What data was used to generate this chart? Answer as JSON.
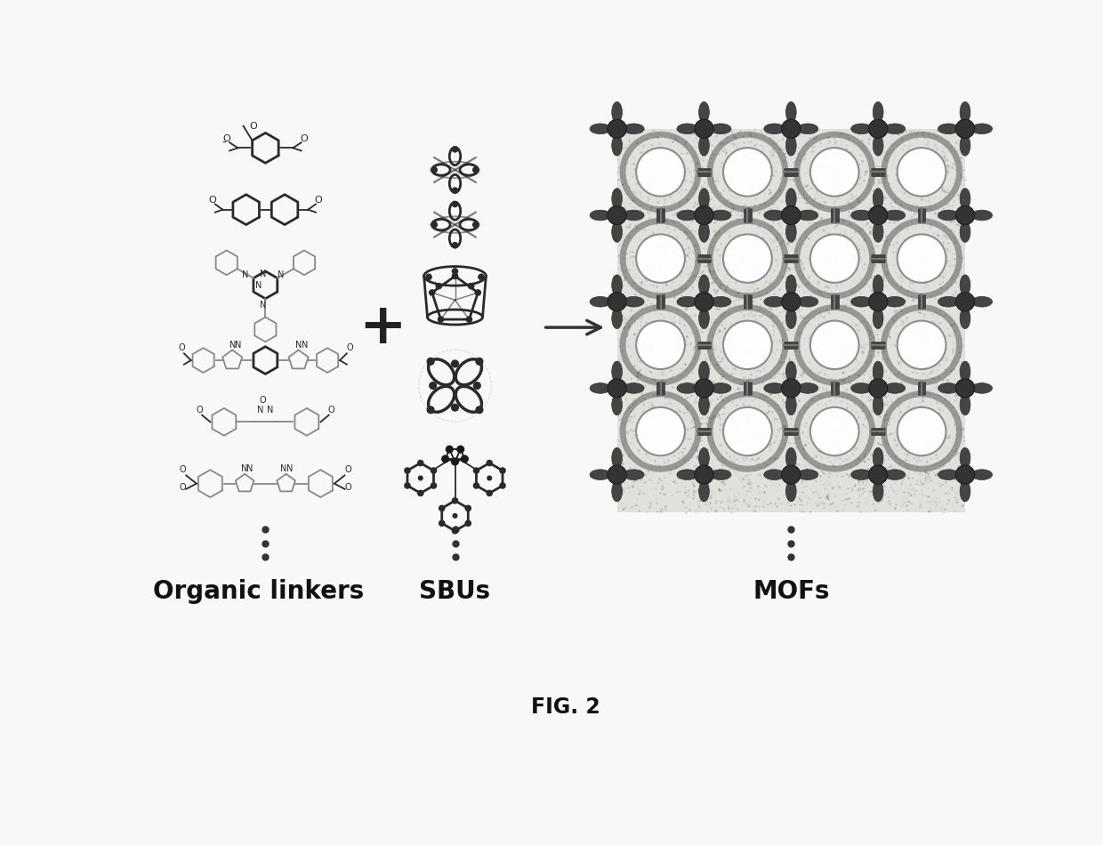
{
  "title": "FIG. 2",
  "label_organic": "Organic linkers",
  "label_sbus": "SBUs",
  "label_mofs": "MOFs",
  "bg_color": "#f8f8f6",
  "text_color": "#111111",
  "label_fontsize": 20,
  "title_fontsize": 17,
  "arrow_color": "#333333",
  "plus_color": "#222222",
  "structure_color": "#2a2a2a",
  "light_color": "#888888",
  "dots_color": "#333333",
  "mof_dark": "#555555",
  "mof_med": "#888888",
  "mof_light": "#bbbbbb"
}
